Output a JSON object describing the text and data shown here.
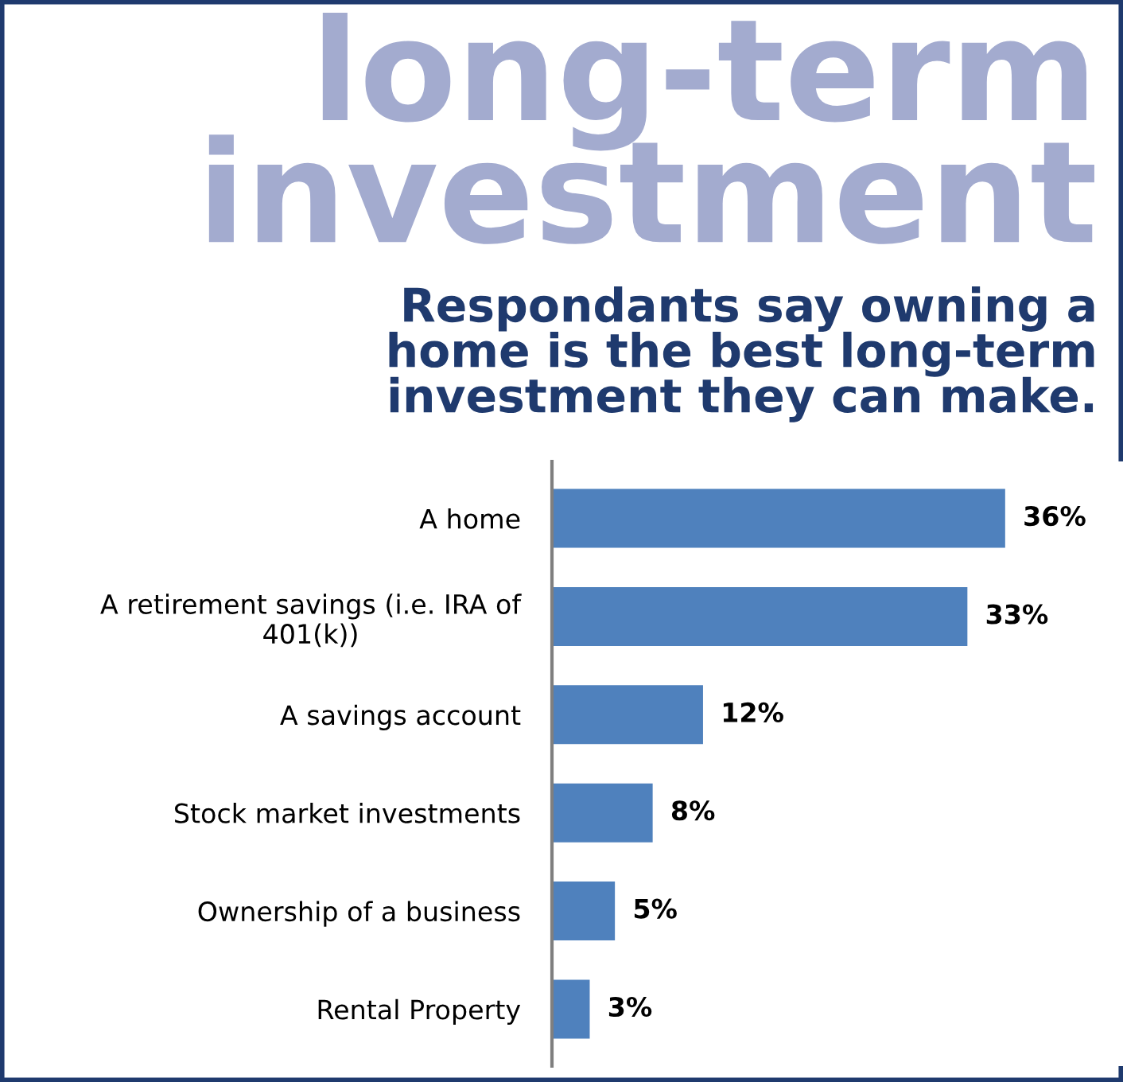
{
  "chart_data": {
    "type": "bar",
    "orientation": "horizontal",
    "title": "long-term\ninvestment",
    "subtitle": "Respondants say owning a\nhome is the best long-term\ninvestment they can make.",
    "categories": [
      "A home",
      "A retirement savings (i.e. IRA of\n401(k))",
      "A savings account",
      "Stock market investments",
      "Ownership of a business",
      "Rental Property"
    ],
    "values": [
      36,
      33,
      12,
      8,
      5,
      3
    ],
    "value_labels": [
      "36%",
      "33%",
      "12%",
      "8%",
      "5%",
      "3%"
    ],
    "color": "#4f81bd",
    "grid": false,
    "legend": false
  }
}
